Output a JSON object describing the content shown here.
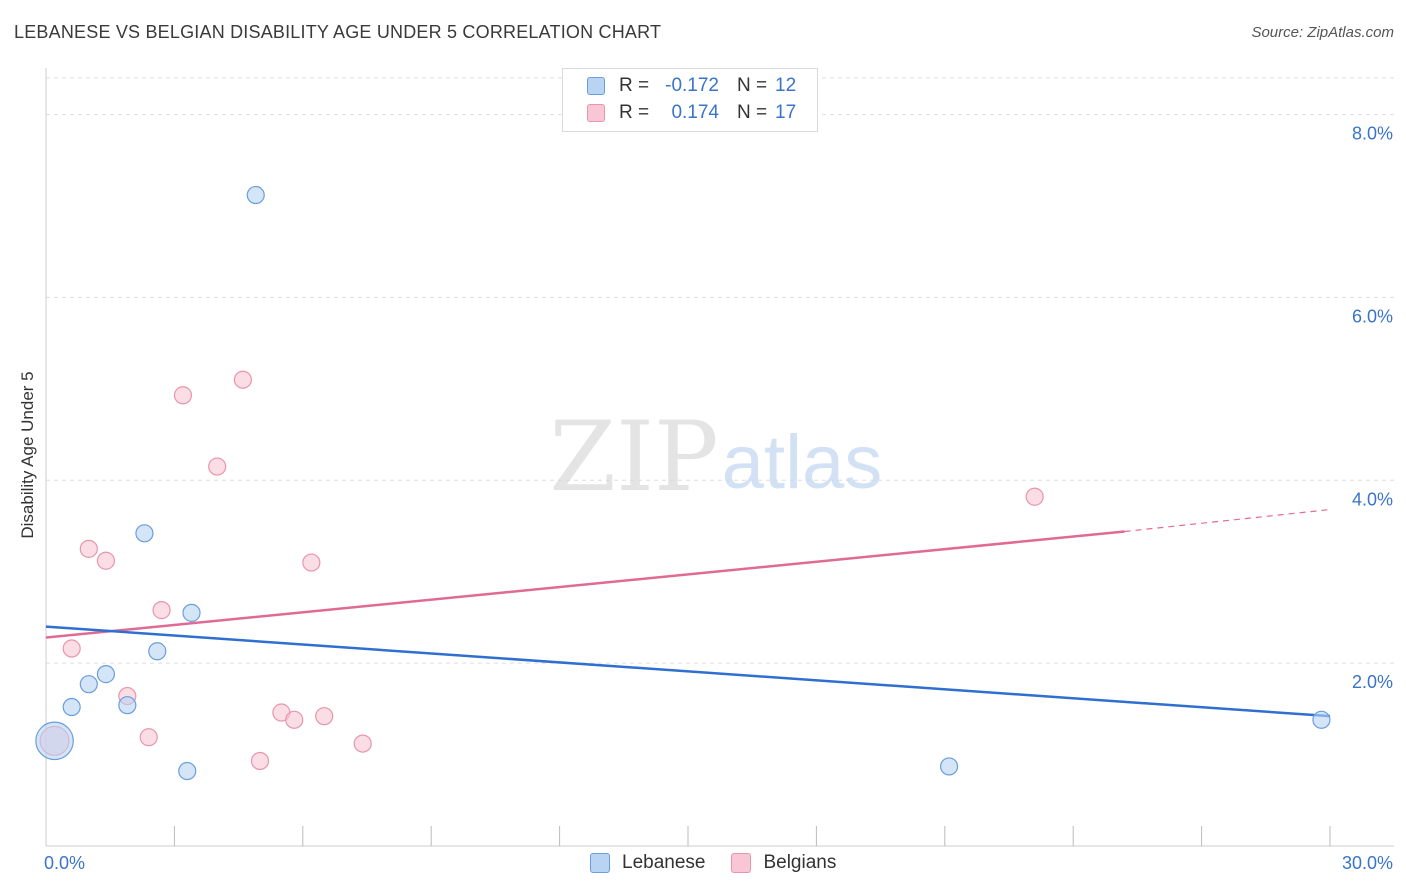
{
  "title": "LEBANESE VS BELGIAN DISABILITY AGE UNDER 5 CORRELATION CHART",
  "source": "Source: ZipAtlas.com",
  "watermark": {
    "zip": "ZIP",
    "atlas": "atlas"
  },
  "legend": {
    "series1": {
      "r_label": "R =",
      "r_value": "-0.172",
      "n_label": "N =",
      "n_value": "12"
    },
    "series2": {
      "r_label": "R =",
      "r_value": "0.174",
      "n_label": "N =",
      "n_value": "17"
    }
  },
  "bottom_legend": {
    "series1": "Lebanese",
    "series2": "Belgians"
  },
  "colors": {
    "blue_fill": "#b9d3f3",
    "blue_stroke": "#6a9edb",
    "blue_line": "#2f6fcf",
    "pink_fill": "#f8c6d4",
    "pink_stroke": "#e895ad",
    "pink_line": "#e06b92",
    "grid": "#dddddd",
    "axis_label": "#3a74c9"
  },
  "chart_data": {
    "type": "scatter",
    "title": "LEBANESE VS BELGIAN DISABILITY AGE UNDER 5 CORRELATION CHART",
    "xlabel": "",
    "ylabel": "Disability Age Under 5",
    "xlim": [
      0,
      30
    ],
    "ylim": [
      0,
      8.4
    ],
    "x_tick_labels": [
      "0.0%",
      "30.0%"
    ],
    "y_ticks": [
      2,
      4,
      6,
      8
    ],
    "y_tick_labels": [
      "2.0%",
      "4.0%",
      "6.0%",
      "8.0%"
    ],
    "series": [
      {
        "name": "Lebanese",
        "points": [
          {
            "x": 0.2,
            "y": 1.15,
            "s": 2.2
          },
          {
            "x": 0.6,
            "y": 1.52,
            "s": 1
          },
          {
            "x": 1.0,
            "y": 1.77,
            "s": 1
          },
          {
            "x": 1.4,
            "y": 1.88,
            "s": 1
          },
          {
            "x": 1.9,
            "y": 1.54,
            "s": 1
          },
          {
            "x": 2.3,
            "y": 3.42,
            "s": 1
          },
          {
            "x": 2.6,
            "y": 2.13,
            "s": 1
          },
          {
            "x": 3.3,
            "y": 0.82,
            "s": 1
          },
          {
            "x": 3.4,
            "y": 2.55,
            "s": 1
          },
          {
            "x": 4.9,
            "y": 7.12,
            "s": 1
          },
          {
            "x": 21.1,
            "y": 0.87,
            "s": 1
          },
          {
            "x": 29.8,
            "y": 1.38,
            "s": 1
          }
        ],
        "trend": {
          "x0": 0,
          "y0": 2.4,
          "x1": 30,
          "y1": 1.42
        }
      },
      {
        "name": "Belgians",
        "points": [
          {
            "x": 0.2,
            "y": 1.15,
            "s": 1.7
          },
          {
            "x": 0.6,
            "y": 2.16,
            "s": 1
          },
          {
            "x": 1.0,
            "y": 3.25,
            "s": 1
          },
          {
            "x": 1.4,
            "y": 3.12,
            "s": 1
          },
          {
            "x": 1.9,
            "y": 1.64,
            "s": 1
          },
          {
            "x": 2.4,
            "y": 1.19,
            "s": 1
          },
          {
            "x": 2.7,
            "y": 2.58,
            "s": 1
          },
          {
            "x": 3.2,
            "y": 4.93,
            "s": 1
          },
          {
            "x": 4.0,
            "y": 4.15,
            "s": 1
          },
          {
            "x": 4.6,
            "y": 5.1,
            "s": 1
          },
          {
            "x": 5.0,
            "y": 0.93,
            "s": 1
          },
          {
            "x": 5.5,
            "y": 1.46,
            "s": 1
          },
          {
            "x": 5.8,
            "y": 1.38,
            "s": 1
          },
          {
            "x": 6.2,
            "y": 3.1,
            "s": 1
          },
          {
            "x": 6.5,
            "y": 1.42,
            "s": 1
          },
          {
            "x": 7.4,
            "y": 1.12,
            "s": 1
          },
          {
            "x": 23.1,
            "y": 3.82,
            "s": 1
          }
        ],
        "trend": {
          "x0": 0,
          "y0": 2.28,
          "x1": 25.2,
          "y1": 3.44
        },
        "trend_extension": {
          "x0": 25.2,
          "y0": 3.44,
          "x1": 30,
          "y1": 3.68
        }
      }
    ]
  }
}
